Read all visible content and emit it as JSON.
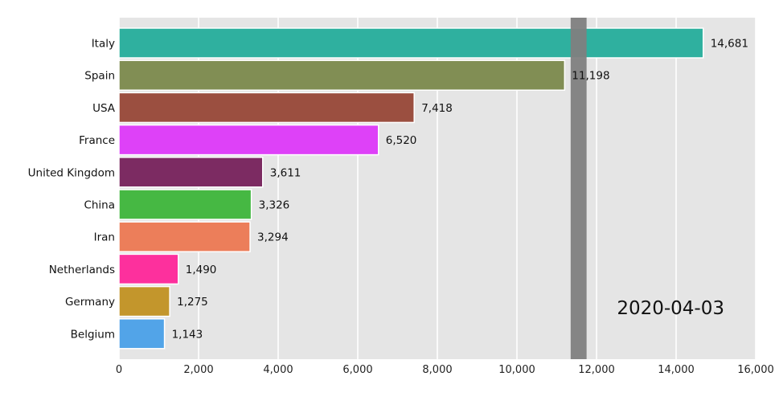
{
  "chart_data": {
    "type": "bar",
    "orientation": "horizontal",
    "date_label": "2020-04-03",
    "categories": [
      "Italy",
      "Spain",
      "USA",
      "France",
      "United Kingdom",
      "China",
      "Iran",
      "Netherlands",
      "Germany",
      "Belgium"
    ],
    "values": [
      14681,
      11198,
      7418,
      6520,
      3611,
      3326,
      3294,
      1490,
      1275,
      1143
    ],
    "value_labels": [
      "14,681",
      "11,198",
      "7,418",
      "6,520",
      "3,611",
      "3,326",
      "3,294",
      "1,490",
      "1,275",
      "1,143"
    ],
    "colors": [
      "#2fb09f",
      "#818e54",
      "#9b4f40",
      "#de41f8",
      "#7c2b62",
      "#46b843",
      "#ec7e5a",
      "#fd309d",
      "#c3962c",
      "#52a4e8"
    ],
    "xlim": [
      0,
      16000
    ],
    "xticks": [
      0,
      2000,
      4000,
      6000,
      8000,
      10000,
      12000,
      14000,
      16000
    ],
    "xtick_labels": [
      "0",
      "2,000",
      "4,000",
      "6,000",
      "8,000",
      "10,000",
      "12,000",
      "14,000",
      "16,000"
    ],
    "grid": true,
    "background": "#e5e5e5",
    "marker_band": {
      "from": 11350,
      "to": 11750,
      "color": "#808080"
    },
    "title": "",
    "xlabel": "",
    "ylabel": ""
  }
}
